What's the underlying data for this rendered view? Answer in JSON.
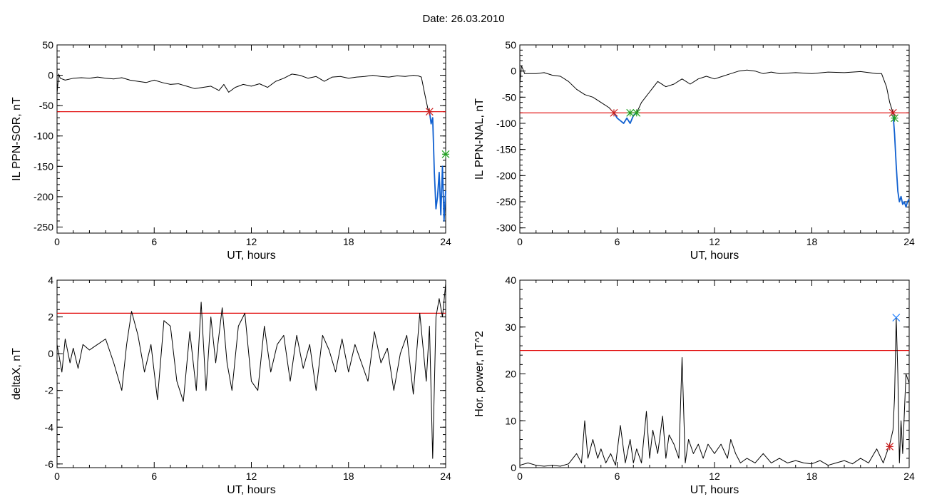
{
  "figure": {
    "title_label": "Date:",
    "date": "26.03.2010",
    "colors": {
      "threshold": "#e00000",
      "highlight": "#1060d0",
      "marker_red": "#cc2020",
      "marker_green": "#20a020",
      "marker_blue": "#2080ff",
      "trace": "#000000"
    }
  },
  "chart_data": [
    {
      "id": "ppn-sor",
      "type": "line",
      "xlabel": "UT, hours",
      "ylabel": "IL PPN-SOR, nT",
      "xlim": [
        0,
        24
      ],
      "ylim": [
        -260,
        50
      ],
      "xticks": [
        0,
        6,
        12,
        18,
        24
      ],
      "yticks": [
        50,
        0,
        -50,
        -100,
        -150,
        -200,
        -250
      ],
      "threshold": -60,
      "series": [
        {
          "x": [
            0,
            0.1,
            0.2,
            0.5,
            1,
            1.5,
            2,
            2.5,
            3,
            3.5,
            4,
            4.5,
            5,
            5.5,
            6,
            6.5,
            7,
            7.5,
            8,
            8.5,
            9,
            9.5,
            10,
            10.3,
            10.6,
            11,
            11.5,
            12,
            12.5,
            13,
            13.5,
            14,
            14.5,
            15,
            15.5,
            16,
            16.5,
            17,
            17.5,
            18,
            18.5,
            19,
            19.5,
            20,
            20.5,
            21,
            21.5,
            22,
            22.3,
            22.5,
            22.7,
            22.9,
            23.0
          ],
          "y": [
            -30,
            2,
            -5,
            -8,
            -5,
            -4,
            -5,
            -3,
            -5,
            -6,
            -4,
            -8,
            -10,
            -12,
            -8,
            -12,
            -15,
            -14,
            -18,
            -22,
            -20,
            -18,
            -25,
            -15,
            -28,
            -20,
            -15,
            -18,
            -14,
            -20,
            -10,
            -5,
            2,
            0,
            -5,
            -2,
            -10,
            -3,
            -2,
            -5,
            -3,
            -2,
            0,
            -2,
            -3,
            -1,
            -2,
            0,
            -1,
            -3,
            -30,
            -55,
            -60
          ]
        },
        {
          "x": [
            23.0,
            23.1,
            23.2,
            23.3,
            23.4,
            23.5,
            23.6,
            23.7,
            23.8,
            23.9,
            24.0
          ],
          "y": [
            -60,
            -80,
            -70,
            -160,
            -220,
            -200,
            -160,
            -230,
            -150,
            -240,
            -190
          ]
        }
      ],
      "markers": [
        {
          "x": 23.0,
          "y": -60,
          "color": "red",
          "symbol": "star"
        },
        {
          "x": 24.0,
          "y": -130,
          "color": "green",
          "symbol": "star"
        }
      ]
    },
    {
      "id": "ppn-nal",
      "type": "line",
      "xlabel": "UT, hours",
      "ylabel": "IL PPN-NAL, nT",
      "xlim": [
        0,
        24
      ],
      "ylim": [
        -310,
        50
      ],
      "xticks": [
        0,
        6,
        12,
        18,
        24
      ],
      "yticks": [
        50,
        0,
        -50,
        -100,
        -150,
        -200,
        -250,
        -300
      ],
      "threshold": -80,
      "series": [
        {
          "x": [
            0,
            0.1,
            0.3,
            0.5,
            1,
            1.5,
            2,
            2.5,
            3,
            3.5,
            4,
            4.5,
            5,
            5.5,
            5.8
          ],
          "y": [
            -25,
            10,
            -5,
            -5,
            -5,
            -3,
            -8,
            -10,
            -20,
            -35,
            -45,
            -50,
            -60,
            -70,
            -80
          ]
        },
        {
          "x": [
            5.8,
            6.0,
            6.2,
            6.4,
            6.6,
            6.8,
            7.0,
            7.2
          ],
          "y": [
            -80,
            -90,
            -95,
            -100,
            -90,
            -100,
            -85,
            -80
          ]
        },
        {
          "x": [
            7.2,
            7.5,
            8,
            8.5,
            9,
            9.5,
            10,
            10.5,
            11,
            11.5,
            12,
            12.5,
            13,
            13.5,
            14,
            14.5,
            15,
            15.5,
            16,
            17,
            18,
            19,
            20,
            21,
            22,
            22.3,
            22.6,
            22.8,
            23.0
          ],
          "y": [
            -80,
            -60,
            -40,
            -20,
            -30,
            -25,
            -15,
            -25,
            -15,
            -10,
            -15,
            -10,
            -5,
            0,
            2,
            0,
            -5,
            -2,
            -5,
            -3,
            -5,
            -2,
            -3,
            -1,
            -5,
            -5,
            -30,
            -60,
            -80
          ]
        },
        {
          "x": [
            23.0,
            23.1,
            23.2,
            23.3,
            23.4,
            23.5,
            23.6,
            23.7,
            23.8,
            23.9,
            24.0
          ],
          "y": [
            -80,
            -120,
            -180,
            -230,
            -250,
            -240,
            -255,
            -250,
            -260,
            -250,
            -245
          ]
        }
      ],
      "markers": [
        {
          "x": 5.8,
          "y": -80,
          "color": "red",
          "symbol": "star"
        },
        {
          "x": 6.8,
          "y": -80,
          "color": "green",
          "symbol": "star"
        },
        {
          "x": 7.2,
          "y": -80,
          "color": "green",
          "symbol": "star"
        },
        {
          "x": 23.0,
          "y": -80,
          "color": "red",
          "symbol": "star"
        },
        {
          "x": 23.1,
          "y": -90,
          "color": "green",
          "symbol": "star"
        }
      ]
    },
    {
      "id": "deltax",
      "type": "line",
      "xlabel": "UT, hours",
      "ylabel": "deltaX, nT",
      "xlim": [
        0,
        24
      ],
      "ylim": [
        -6.2,
        4
      ],
      "xticks": [
        0,
        6,
        12,
        18,
        24
      ],
      "yticks": [
        4,
        2,
        0,
        -2,
        -4,
        -6
      ],
      "threshold": 2.2,
      "series": [
        {
          "x": [
            0,
            0.3,
            0.5,
            0.8,
            1.0,
            1.3,
            1.6,
            2.0,
            2.5,
            3.0,
            3.5,
            4.0,
            4.3,
            4.6,
            5.0,
            5.4,
            5.8,
            6.2,
            6.6,
            7.0,
            7.4,
            7.8,
            8.2,
            8.6,
            8.9,
            9.2,
            9.5,
            9.8,
            10.2,
            10.5,
            10.8,
            11.2,
            11.6,
            12.0,
            12.4,
            12.8,
            13.2,
            13.6,
            14.0,
            14.4,
            14.8,
            15.2,
            15.6,
            16.0,
            16.4,
            16.8,
            17.2,
            17.6,
            18.0,
            18.4,
            18.8,
            19.2,
            19.6,
            20.0,
            20.4,
            20.8,
            21.2,
            21.6,
            22.0,
            22.4,
            22.8,
            23.0,
            23.2,
            23.4,
            23.6,
            23.8,
            24.0
          ],
          "y": [
            0.5,
            -1.0,
            0.8,
            -0.5,
            0.3,
            -0.8,
            0.5,
            0.2,
            0.5,
            0.8,
            -0.5,
            -2.0,
            0.5,
            2.3,
            1.0,
            -1.0,
            0.5,
            -2.5,
            1.8,
            1.5,
            -1.5,
            -2.6,
            1.2,
            -2.0,
            2.8,
            -2.0,
            2.0,
            -0.5,
            2.5,
            -0.5,
            -2.0,
            1.5,
            2.2,
            -1.5,
            -2.0,
            1.5,
            -1.0,
            0.5,
            1.0,
            -1.5,
            1.0,
            -0.8,
            0.5,
            -2.0,
            1.0,
            0.2,
            -1.0,
            0.8,
            -1.0,
            0.5,
            -0.5,
            -1.5,
            1.2,
            -0.5,
            0.3,
            -2.0,
            0.0,
            1.0,
            -2.2,
            2.2,
            -1.5,
            1.5,
            -5.7,
            2.0,
            3.0,
            2.0,
            3.8
          ]
        }
      ]
    },
    {
      "id": "hor-power",
      "type": "line",
      "xlabel": "UT, hours",
      "ylabel": "Hor. power, nT^2",
      "xlim": [
        0,
        24
      ],
      "ylim": [
        0,
        40
      ],
      "xticks": [
        0,
        6,
        12,
        18,
        24
      ],
      "yticks": [
        40,
        30,
        20,
        10,
        0
      ],
      "threshold": 25,
      "series": [
        {
          "x": [
            0,
            0.5,
            1,
            1.5,
            2,
            2.5,
            3,
            3.5,
            3.8,
            4.0,
            4.2,
            4.5,
            4.8,
            5.0,
            5.3,
            5.6,
            5.9,
            6.2,
            6.5,
            6.8,
            7.0,
            7.2,
            7.5,
            7.8,
            8.0,
            8.2,
            8.5,
            8.8,
            9.0,
            9.2,
            9.5,
            9.8,
            10.0,
            10.2,
            10.4,
            10.7,
            11.0,
            11.3,
            11.6,
            12.0,
            12.4,
            12.8,
            13.0,
            13.3,
            13.6,
            14.0,
            14.5,
            15.0,
            15.5,
            16.0,
            16.5,
            17.0,
            17.5,
            18.0,
            18.5,
            19.0,
            19.5,
            20.0,
            20.5,
            21.0,
            21.5,
            22.0,
            22.4,
            22.8,
            23.0,
            23.1,
            23.2,
            23.3,
            23.4,
            23.5,
            23.6,
            23.8,
            24.0
          ],
          "y": [
            0.5,
            1,
            0.5,
            0.3,
            0.5,
            0.3,
            0.8,
            3,
            1,
            10,
            2,
            6,
            2,
            4,
            1,
            3,
            0.5,
            9,
            1,
            6,
            1,
            4,
            1,
            12,
            2,
            8,
            3,
            11,
            2,
            7,
            5,
            2,
            23.5,
            1,
            6,
            3,
            5,
            2,
            5,
            3,
            5,
            2,
            6,
            3,
            1,
            2,
            1,
            3,
            1,
            2,
            1,
            1.5,
            1,
            0.8,
            1.5,
            0.5,
            1,
            1.5,
            0.8,
            2,
            1,
            4,
            1,
            5,
            8,
            15,
            32,
            20,
            1,
            10,
            3,
            20,
            18
          ]
        }
      ],
      "markers": [
        {
          "x": 23.2,
          "y": 32,
          "color": "blue",
          "symbol": "cross"
        },
        {
          "x": 22.8,
          "y": 4.5,
          "color": "red",
          "symbol": "star"
        }
      ]
    }
  ]
}
